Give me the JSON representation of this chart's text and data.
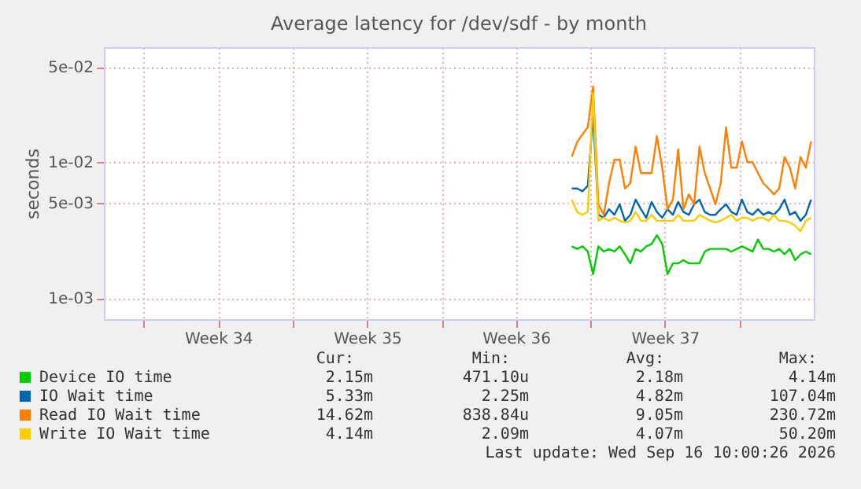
{
  "chart_data": {
    "type": "line",
    "title": "Average latency for /dev/sdf - by month",
    "ylabel": "seconds",
    "log": "y",
    "grid": true,
    "legend": "bottom",
    "xlim": [
      "2026-08-15T03:00",
      "2026-09-17T12:00"
    ],
    "xticks": [
      {
        "value": "2026-08-17T00:00",
        "label": null
      },
      {
        "value": "2026-08-20T12:00",
        "label": "Week 34"
      },
      {
        "value": "2026-08-24T00:00",
        "label": null
      },
      {
        "value": "2026-08-27T12:00",
        "label": "Week 35"
      },
      {
        "value": "2026-08-31T00:00",
        "label": null
      },
      {
        "value": "2026-09-03T12:00",
        "label": "Week 36"
      },
      {
        "value": "2026-09-07T00:00",
        "label": null
      },
      {
        "value": "2026-09-10T12:00",
        "label": "Week 37"
      },
      {
        "value": "2026-09-14T00:00",
        "label": null
      }
    ],
    "ylim": [
      0.0007,
      0.07
    ],
    "yticks": [
      {
        "value": 0.001,
        "label": "1e-03"
      },
      {
        "value": 0.005,
        "label": "5e-03"
      },
      {
        "value": 0.01,
        "label": "1e-02"
      },
      {
        "value": 0.05,
        "label": "5e-02"
      }
    ],
    "x": [
      "2026-09-06T03:00",
      "2026-09-06T09:00",
      "2026-09-06T15:00",
      "2026-09-06T21:00",
      "2026-09-07T03:00",
      "2026-09-07T09:00",
      "2026-09-07T15:00",
      "2026-09-07T21:00",
      "2026-09-08T03:00",
      "2026-09-08T09:00",
      "2026-09-08T15:00",
      "2026-09-08T21:00",
      "2026-09-09T03:00",
      "2026-09-09T09:00",
      "2026-09-09T15:00",
      "2026-09-09T21:00",
      "2026-09-10T03:00",
      "2026-09-10T09:00",
      "2026-09-10T15:00",
      "2026-09-10T21:00",
      "2026-09-11T03:00",
      "2026-09-11T09:00",
      "2026-09-11T15:00",
      "2026-09-11T21:00",
      "2026-09-12T03:00",
      "2026-09-12T09:00",
      "2026-09-12T15:00",
      "2026-09-12T21:00",
      "2026-09-13T03:00",
      "2026-09-13T09:00",
      "2026-09-13T15:00",
      "2026-09-13T21:00",
      "2026-09-14T03:00",
      "2026-09-14T09:00",
      "2026-09-14T15:00",
      "2026-09-14T21:00",
      "2026-09-15T03:00",
      "2026-09-15T09:00",
      "2026-09-15T15:00",
      "2026-09-15T21:00",
      "2026-09-16T03:00",
      "2026-09-16T09:00",
      "2026-09-16T15:00",
      "2026-09-16T21:00",
      "2026-09-17T03:00",
      "2026-09-17T09:00"
    ],
    "series": [
      {
        "name": "Device IO time",
        "color": "#00cc00",
        "values": [
          0.0024,
          0.0023,
          0.0024,
          0.0022,
          0.0015,
          0.0024,
          0.0022,
          0.0023,
          0.0022,
          0.0024,
          0.0021,
          0.0018,
          0.0023,
          0.0022,
          0.0024,
          0.0025,
          0.0029,
          0.0025,
          0.0015,
          0.0018,
          0.0018,
          0.0019,
          0.0018,
          0.0018,
          0.0018,
          0.0022,
          0.0023,
          0.0023,
          0.0023,
          0.0023,
          0.0022,
          0.0023,
          0.0024,
          0.0023,
          0.0022,
          0.0027,
          0.0023,
          0.0023,
          0.0022,
          0.0023,
          0.0021,
          0.0023,
          0.0019,
          0.0021,
          0.0022,
          0.0021
        ]
      },
      {
        "name": "IO Wait time",
        "color": "#0066b3",
        "values": [
          0.0064,
          0.0064,
          0.0061,
          0.0067,
          0.022,
          0.0041,
          0.0039,
          0.0045,
          0.0041,
          0.0049,
          0.0037,
          0.0041,
          0.0053,
          0.0045,
          0.0039,
          0.0051,
          0.0043,
          0.0039,
          0.0045,
          0.0041,
          0.0051,
          0.0043,
          0.0041,
          0.0049,
          0.0053,
          0.0043,
          0.0041,
          0.0041,
          0.0045,
          0.0049,
          0.0043,
          0.0041,
          0.0053,
          0.0043,
          0.0041,
          0.0045,
          0.0041,
          0.0043,
          0.0041,
          0.0045,
          0.0053,
          0.0041,
          0.0043,
          0.0037,
          0.0041,
          0.0053
        ]
      },
      {
        "name": "Read IO Wait time",
        "color": "#ff8000",
        "values": [
          0.011,
          0.014,
          0.016,
          0.018,
          0.036,
          0.0049,
          0.0041,
          0.007,
          0.0104,
          0.0104,
          0.0064,
          0.007,
          0.013,
          0.0083,
          0.0083,
          0.0083,
          0.0155,
          0.0091,
          0.0045,
          0.0053,
          0.0124,
          0.0045,
          0.0058,
          0.0049,
          0.013,
          0.0083,
          0.0064,
          0.0049,
          0.007,
          0.018,
          0.0091,
          0.0091,
          0.0142,
          0.01,
          0.01,
          0.0083,
          0.007,
          0.0064,
          0.0058,
          0.0064,
          0.0109,
          0.0091,
          0.0064,
          0.0109,
          0.0091,
          0.0142
        ]
      },
      {
        "name": "Write IO Wait time",
        "color": "#ffcc00",
        "values": [
          0.0053,
          0.0043,
          0.0041,
          0.0043,
          0.032,
          0.0037,
          0.0039,
          0.0037,
          0.0039,
          0.0037,
          0.0036,
          0.0037,
          0.0043,
          0.0037,
          0.0037,
          0.0041,
          0.0037,
          0.0037,
          0.0037,
          0.0037,
          0.0041,
          0.0037,
          0.0037,
          0.0037,
          0.0041,
          0.0039,
          0.0037,
          0.0036,
          0.0037,
          0.0039,
          0.0041,
          0.0037,
          0.0039,
          0.0039,
          0.0037,
          0.0039,
          0.0039,
          0.0037,
          0.0041,
          0.0037,
          0.0037,
          0.0036,
          0.0034,
          0.0031,
          0.0037,
          0.0039
        ]
      }
    ],
    "annotations": [
      "Cur:",
      "Min:",
      "Avg:",
      "Max:",
      "2.15m",
      "471.10u",
      "2.18m",
      "4.14m",
      "5.33m",
      "2.25m",
      "4.82m",
      "107.04m",
      "14.62m",
      "838.84u",
      "9.05m",
      "230.72m",
      "4.14m",
      "2.09m",
      "4.07m",
      "50.20m",
      "Last update: Wed Sep 16 10:00:26 2026"
    ]
  }
}
